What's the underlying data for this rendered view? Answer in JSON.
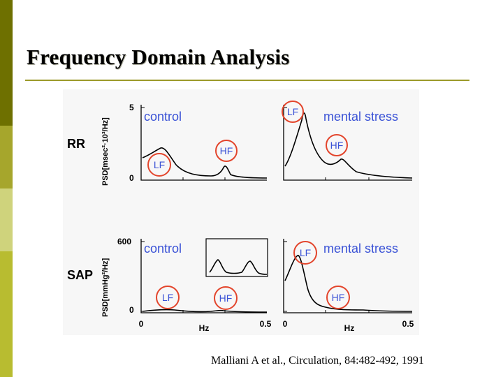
{
  "slide": {
    "title": "Frequency Domain Analysis",
    "citation": "Malliani A et al., Circulation, 84:482-492, 1991",
    "colors": {
      "sidebar": [
        "#6e7000",
        "#a6a62c",
        "#cfd37c",
        "#b8bc30"
      ],
      "rule": "#9c9a2a",
      "annotation": "#3a52d6",
      "circle": "#e3452c"
    }
  },
  "figure": {
    "rows": [
      {
        "label": "RR",
        "ylabel": "PSD[msec²·10³/Hz]",
        "ymax": "5",
        "ymin": "0"
      },
      {
        "label": "SAP",
        "ylabel": "PSD[mmHg²/Hz]",
        "ymax": "600",
        "ymin": "0"
      }
    ],
    "panels": [
      {
        "title": "control",
        "lf": "LF",
        "hf": "HF"
      },
      {
        "title": "mental stress",
        "lf": "LF",
        "hf": "HF"
      },
      {
        "title": "control",
        "lf": "LF",
        "hf": "HF"
      },
      {
        "title": "mental stress",
        "lf": "LF",
        "hf": "HF"
      }
    ],
    "xaxis": {
      "left_min": "0",
      "left_max": "0.5",
      "right_min": "0",
      "right_max": "0.5",
      "label": "Hz"
    }
  }
}
